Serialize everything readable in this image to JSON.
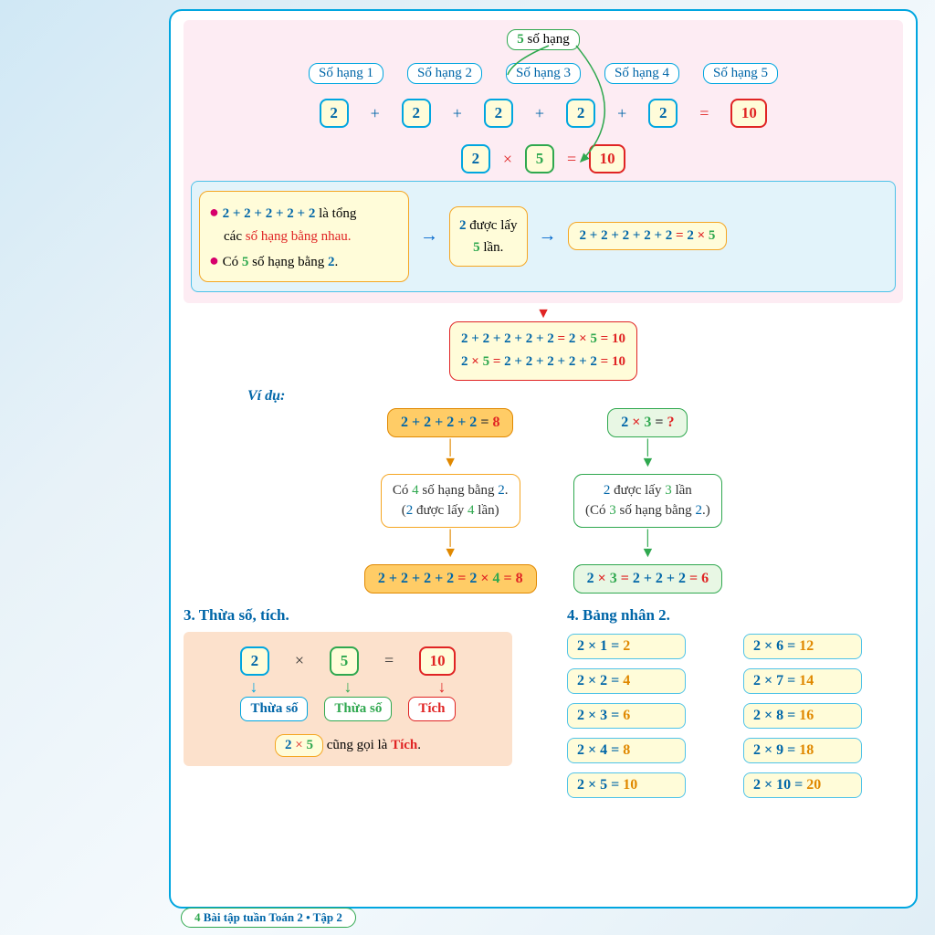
{
  "colors": {
    "blue": "#0077c2",
    "green": "#2fa84f",
    "red": "#e02424",
    "orange": "#e08800",
    "magenta": "#d6006c",
    "cyan": "#00a6e0",
    "text": "#1a3d6d"
  },
  "top": {
    "header": {
      "num": "5",
      "num_color": "#2fa84f",
      "text": " số hạng",
      "border": "#2fa84f"
    },
    "terms": [
      "Số hạng 1",
      "Số hạng 2",
      "Số hạng 3",
      "Số hạng 4",
      "Số hạng 5"
    ],
    "term_border": "#00a6e0",
    "term_color": "#0066a8",
    "addends": [
      "2",
      "2",
      "2",
      "2",
      "2"
    ],
    "addend_border": "#00a6e0",
    "addend_color": "#0066a8",
    "addend_bg": "#fffcd9",
    "plus": "+",
    "plus_color": "#0066a8",
    "eq": "=",
    "eq_color": "#e02424",
    "result": "10",
    "result_border": "#e02424",
    "result_color": "#e02424",
    "result_bg": "#fffcd9",
    "mult": {
      "a": "2",
      "a_border": "#00a6e0",
      "a_color": "#0066a8",
      "op": "×",
      "op_color": "#e02424",
      "b": "5",
      "b_border": "#2fa84f",
      "b_color": "#2fa84f",
      "eq": "=",
      "eq_color": "#e02424",
      "r": "10",
      "r_border": "#e02424",
      "r_color": "#e02424"
    }
  },
  "explain": {
    "l1_a": "2 + 2 + 2 + 2 + 2",
    "l1_b": " là tổng",
    "l2_a": "các ",
    "l2_b": "số hạng bằng nhau.",
    "l3_a": "Có ",
    "l3_b": "5",
    "l3_c": " số hạng bằng ",
    "l3_d": "2",
    "l3_e": ".",
    "mid_a": "2",
    "mid_b": " được lấy",
    "mid_c": "5",
    "mid_d": " lần.",
    "right": "2 + 2 + 2 + 2 + 2 = 2 × 5"
  },
  "center": {
    "line1_parts": [
      [
        "2 + 2 + 2 + 2 + 2",
        "#0066a8"
      ],
      [
        " = ",
        "#e02424"
      ],
      [
        "2",
        "#0066a8"
      ],
      [
        " × ",
        "#e02424"
      ],
      [
        "5",
        "#2fa84f"
      ],
      [
        " = ",
        "#e02424"
      ],
      [
        "10",
        "#e02424"
      ]
    ],
    "line2_parts": [
      [
        "2",
        "#0066a8"
      ],
      [
        " × ",
        "#e02424"
      ],
      [
        "5",
        "#2fa84f"
      ],
      [
        " = ",
        "#e02424"
      ],
      [
        "2 + 2 + 2 + 2 + 2",
        "#0066a8"
      ],
      [
        " = ",
        "#e02424"
      ],
      [
        "10",
        "#e02424"
      ]
    ]
  },
  "vidu": "Ví dụ:",
  "exL": {
    "top": [
      [
        "2 + 2 + 2 + 2",
        "#0066a8"
      ],
      [
        "  =  ",
        "#333"
      ],
      [
        "8",
        "#e02424"
      ]
    ],
    "mid1": [
      [
        "Có ",
        "#333"
      ],
      [
        "4",
        "#2fa84f"
      ],
      [
        " số hạng bằng ",
        "#333"
      ],
      [
        "2",
        "#0066a8"
      ],
      [
        ".",
        "#333"
      ]
    ],
    "mid2": [
      [
        "(",
        "#333"
      ],
      [
        "2",
        "#0066a8"
      ],
      [
        " được lấy ",
        "#333"
      ],
      [
        "4",
        "#2fa84f"
      ],
      [
        " lần)",
        "#333"
      ]
    ],
    "bot": [
      [
        "2 + 2 + 2 + 2",
        "#0066a8"
      ],
      [
        " = ",
        "#e02424"
      ],
      [
        "2",
        "#0066a8"
      ],
      [
        " × ",
        "#e02424"
      ],
      [
        "4",
        "#2fa84f"
      ],
      [
        " = ",
        "#e02424"
      ],
      [
        "8",
        "#e02424"
      ]
    ]
  },
  "exR": {
    "top": [
      [
        "2",
        "#0066a8"
      ],
      [
        "  ×  ",
        "#e02424"
      ],
      [
        "3",
        "#2fa84f"
      ],
      [
        "  =  ",
        "#333"
      ],
      [
        "?",
        "#e02424"
      ]
    ],
    "mid1": [
      [
        "2",
        "#0066a8"
      ],
      [
        " được lấy ",
        "#333"
      ],
      [
        "3",
        "#2fa84f"
      ],
      [
        " lần",
        "#333"
      ]
    ],
    "mid2": [
      [
        "(Có ",
        "#333"
      ],
      [
        "3",
        "#2fa84f"
      ],
      [
        " số hạng bằng ",
        "#333"
      ],
      [
        "2",
        "#0066a8"
      ],
      [
        ".)",
        "#333"
      ]
    ],
    "bot": [
      [
        "2",
        "#0066a8"
      ],
      [
        " × ",
        "#e02424"
      ],
      [
        "3",
        "#2fa84f"
      ],
      [
        " = ",
        "#e02424"
      ],
      [
        "2 + 2 + 2",
        "#0066a8"
      ],
      [
        " = ",
        "#e02424"
      ],
      [
        "6",
        "#e02424"
      ]
    ]
  },
  "sec3": {
    "title": "3.  Thừa số, tích.",
    "title_color": "#0066a8",
    "a": "2",
    "a_border": "#00a6e0",
    "a_color": "#0066a8",
    "b": "5",
    "b_border": "#2fa84f",
    "b_color": "#2fa84f",
    "r": "10",
    "r_border": "#e02424",
    "r_color": "#e02424",
    "lab_a": "Thừa số",
    "lab_a_color": "#0066a8",
    "lab_a_border": "#00a6e0",
    "lab_b": "Thừa số",
    "lab_b_color": "#2fa84f",
    "lab_b_border": "#2fa84f",
    "lab_r": "Tích",
    "lab_r_color": "#e02424",
    "lab_r_border": "#e02424",
    "note_a": "2",
    "note_op": " × ",
    "note_b": "5",
    "note_txt": " cũng gọi là ",
    "note_t": "Tích",
    "note_dot": "."
  },
  "sec4": {
    "title": "4.  Bảng nhân 2.",
    "title_color": "#0066a8",
    "rows": [
      [
        [
          "2 × 1 = ",
          "#0066a8"
        ],
        [
          "2",
          "#e08800"
        ]
      ],
      [
        [
          "2 × 2 = ",
          "#0066a8"
        ],
        [
          "4",
          "#e08800"
        ]
      ],
      [
        [
          "2 × 3 = ",
          "#0066a8"
        ],
        [
          "6",
          "#e08800"
        ]
      ],
      [
        [
          "2 × 4 = ",
          "#0066a8"
        ],
        [
          "8",
          "#e08800"
        ]
      ],
      [
        [
          "2 × 5 = ",
          "#0066a8"
        ],
        [
          "10",
          "#e08800"
        ]
      ],
      [
        [
          "2 × 6 = ",
          "#0066a8"
        ],
        [
          "12",
          "#e08800"
        ]
      ],
      [
        [
          "2 × 7 = ",
          "#0066a8"
        ],
        [
          "14",
          "#e08800"
        ]
      ],
      [
        [
          "2 × 8 = ",
          "#0066a8"
        ],
        [
          "16",
          "#e08800"
        ]
      ],
      [
        [
          "2 × 9 = ",
          "#0066a8"
        ],
        [
          "18",
          "#e08800"
        ]
      ],
      [
        [
          "2 × 10 = ",
          "#0066a8"
        ],
        [
          "20",
          "#e08800"
        ]
      ]
    ]
  },
  "footer": {
    "page": "4",
    "text": "Bài tập tuần Toán 2 • Tập 2"
  }
}
